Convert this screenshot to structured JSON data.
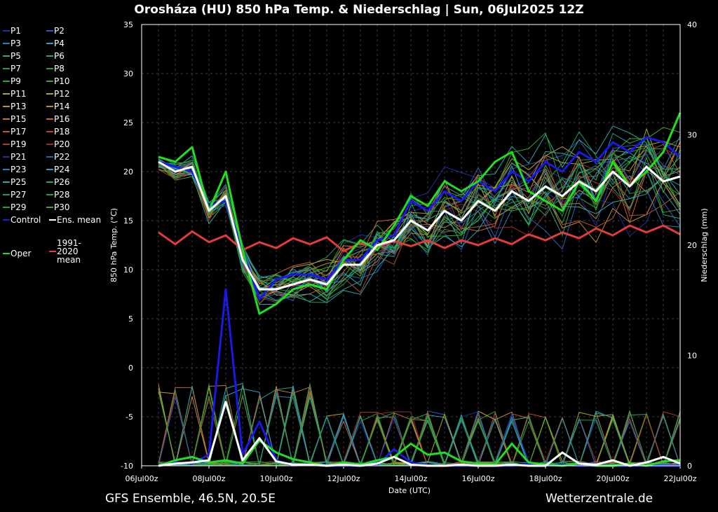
{
  "chart_data": {
    "type": "line",
    "title": "Orosháza  (HU)  850 hPa Temp. & Niederschlag | Sun, 06Jul2025 12Z",
    "xlabel": "Date (UTC)",
    "ylabel": "850 hPa Temp. (°C)",
    "y2label": "Niederschlag (mm)",
    "ylim": [
      -10,
      35
    ],
    "y2lim": [
      0,
      40
    ],
    "yticks": [
      "35",
      "30",
      "25",
      "20",
      "15",
      "10",
      "5",
      "0",
      "-5",
      "-10"
    ],
    "y2ticks": [
      "40",
      "30",
      "20",
      "10",
      "0"
    ],
    "xticks": [
      "06Jul 00z",
      "08Jul 00z",
      "10Jul 00z",
      "12Jul 00z",
      "14Jul 00z",
      "16Jul 00z",
      "18Jul 00z",
      "20Jul 00z",
      "22Jul 00z"
    ],
    "time_start": "06Jul 12z",
    "time_step_hours": 12,
    "grid": true,
    "legend_placement": "left-outside",
    "series": [
      {
        "name": "Ens. mean",
        "color": "#ffffff",
        "temp": [
          21,
          20,
          20.5,
          16,
          17.5,
          11,
          8,
          8,
          8.5,
          9,
          8.5,
          10.5,
          10.5,
          12.5,
          13,
          15,
          14,
          16,
          15,
          17,
          16,
          18,
          17,
          18.5,
          17.5,
          19,
          18,
          20,
          18.5,
          20.5,
          19,
          19.5
        ],
        "precip": [
          0,
          0.2,
          0.3,
          0.5,
          5.8,
          0.5,
          2.5,
          0.4,
          0.1,
          0.1,
          0,
          0.1,
          0,
          0.2,
          0.8,
          0.1,
          0,
          0,
          0.1,
          0,
          0,
          0.1,
          0,
          0,
          1.2,
          0.2,
          0.1,
          0.5,
          0,
          0.3,
          0.8,
          0.2
        ]
      },
      {
        "name": "Control",
        "color": "#1a1ae6",
        "temp": [
          21,
          20.5,
          20,
          16.5,
          17,
          12,
          7,
          9,
          9.5,
          9.5,
          9,
          11,
          11,
          13,
          13.5,
          17,
          16,
          18,
          17,
          19,
          18,
          20,
          19,
          21,
          20,
          22,
          21,
          23,
          22,
          23.5,
          23,
          21.5
        ],
        "precip": [
          0,
          0.3,
          0.2,
          1,
          16,
          1,
          4,
          0.5,
          0,
          0.2,
          0,
          0,
          0,
          0.1,
          1.5,
          0.3,
          0,
          0,
          0,
          0,
          0,
          0,
          0.2,
          0,
          0.1,
          0,
          0,
          0,
          0,
          0,
          0,
          0
        ]
      },
      {
        "name": "Oper",
        "color": "#22dd22",
        "temp": [
          21.5,
          21,
          22.5,
          16,
          20,
          12,
          5.5,
          6.5,
          8,
          8.5,
          8,
          11,
          13,
          12,
          14.5,
          17.5,
          16.5,
          19,
          18,
          19,
          21,
          22,
          18,
          17,
          16,
          19,
          17,
          21,
          18.5,
          20,
          22,
          26
        ],
        "precip": [
          0,
          0.5,
          0.8,
          0.3,
          0.5,
          0.2,
          2.3,
          1.2,
          0.6,
          0.3,
          0,
          0.3,
          0.1,
          0.5,
          0.8,
          2,
          1,
          1.2,
          0.4,
          0.2,
          0.1,
          2,
          0.3,
          0.1,
          0,
          0.2,
          0,
          0,
          0.2,
          0,
          0.4,
          0.5
        ]
      },
      {
        "name": "1991-2020 mean",
        "color": "#e03c3c",
        "temp": [
          13.8,
          12.6,
          13.9,
          12.8,
          13.5,
          12.0,
          12.8,
          12.2,
          13.2,
          12.6,
          13.3,
          11.9,
          12.7,
          12.3,
          12.9,
          12.4,
          13.0,
          12.2,
          13.0,
          12.5,
          13.2,
          12.6,
          13.6,
          13.0,
          13.8,
          13.2,
          14.2,
          13.5,
          14.5,
          13.8,
          14.5,
          13.6
        ]
      }
    ],
    "members": {
      "count": 30,
      "names": [
        "P1",
        "P2",
        "P3",
        "P4",
        "P5",
        "P6",
        "P7",
        "P8",
        "P9",
        "P10",
        "P11",
        "P12",
        "P13",
        "P14",
        "P15",
        "P16",
        "P17",
        "P18",
        "P19",
        "P20",
        "P21",
        "P22",
        "P23",
        "P24",
        "P25",
        "P26",
        "P27",
        "P28",
        "P29",
        "P30"
      ],
      "colors": [
        "#1f2fa8",
        "#2a5fb8",
        "#2a7fb8",
        "#2a9fbf",
        "#2aa7a7",
        "#27a37a",
        "#229a55",
        "#22a040",
        "#2aa52a",
        "#3aa82a",
        "#b0a22a",
        "#b8a030",
        "#c09030",
        "#c08a30",
        "#c07a30",
        "#c06a30",
        "#b85a30",
        "#b04a30",
        "#a83a30",
        "#9a2a2a",
        "#1f2fa8",
        "#2a5fb8",
        "#2a7fb8",
        "#2a9fbf",
        "#2aa7a7",
        "#27a37a",
        "#229a55",
        "#22a040",
        "#2aa52a",
        "#3aa82a"
      ]
    }
  },
  "footer": {
    "left": "GFS Ensemble, 46.5N, 20.5E",
    "right": "Wetterzentrale.de"
  }
}
